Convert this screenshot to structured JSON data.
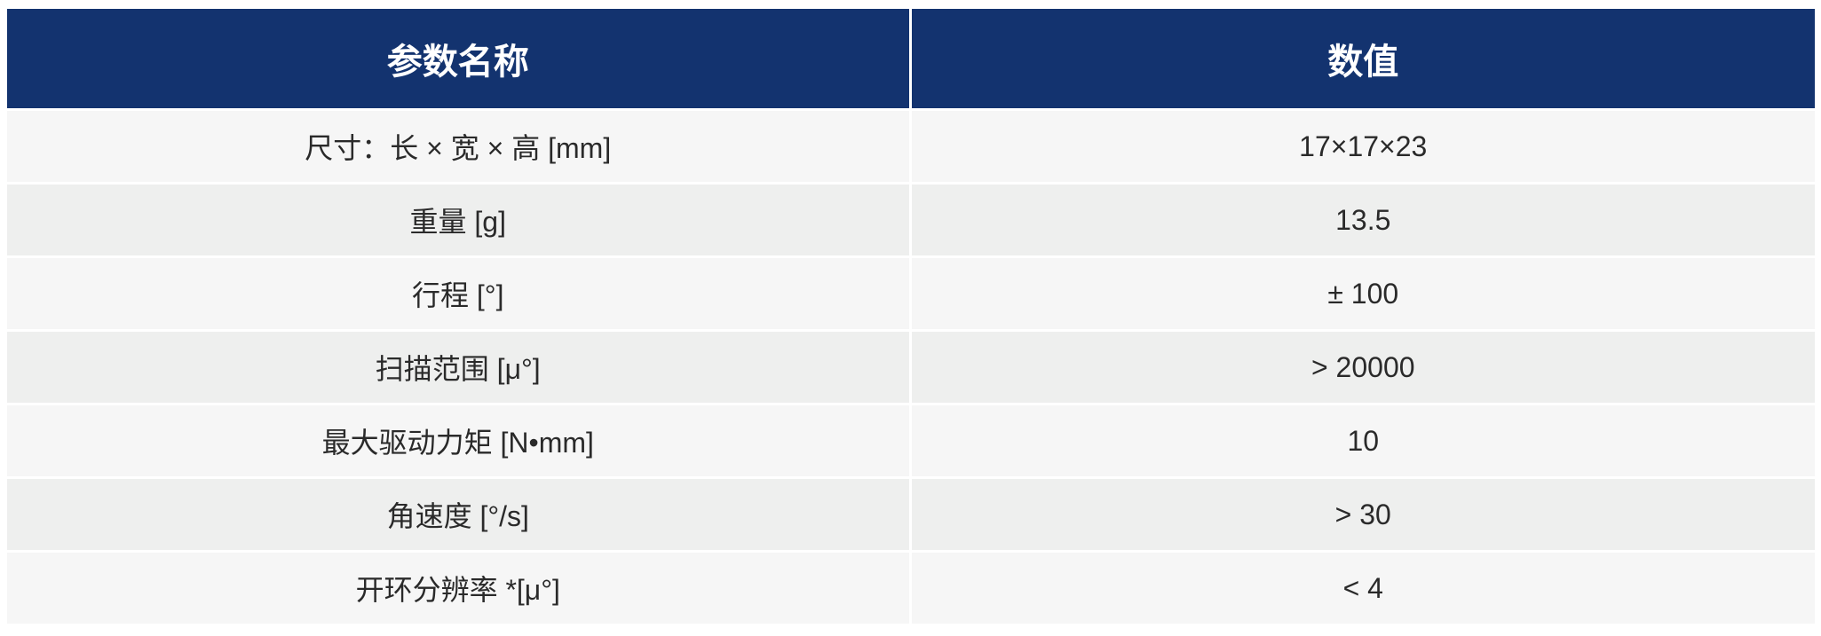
{
  "table": {
    "header": [
      "参数名称",
      "数值"
    ],
    "rows": [
      [
        "尺寸：长 × 宽 × 高 [mm]",
        "17×17×23"
      ],
      [
        "重量 [g]",
        "13.5"
      ],
      [
        "行程 [°]",
        "± 100"
      ],
      [
        "扫描范围 [μ°]",
        "> 20000"
      ],
      [
        "最大驱动力矩 [N•mm]",
        "10"
      ],
      [
        "角速度 [°/s]",
        "> 30"
      ],
      [
        "开环分辨率 *[μ°]",
        "< 4"
      ]
    ]
  }
}
